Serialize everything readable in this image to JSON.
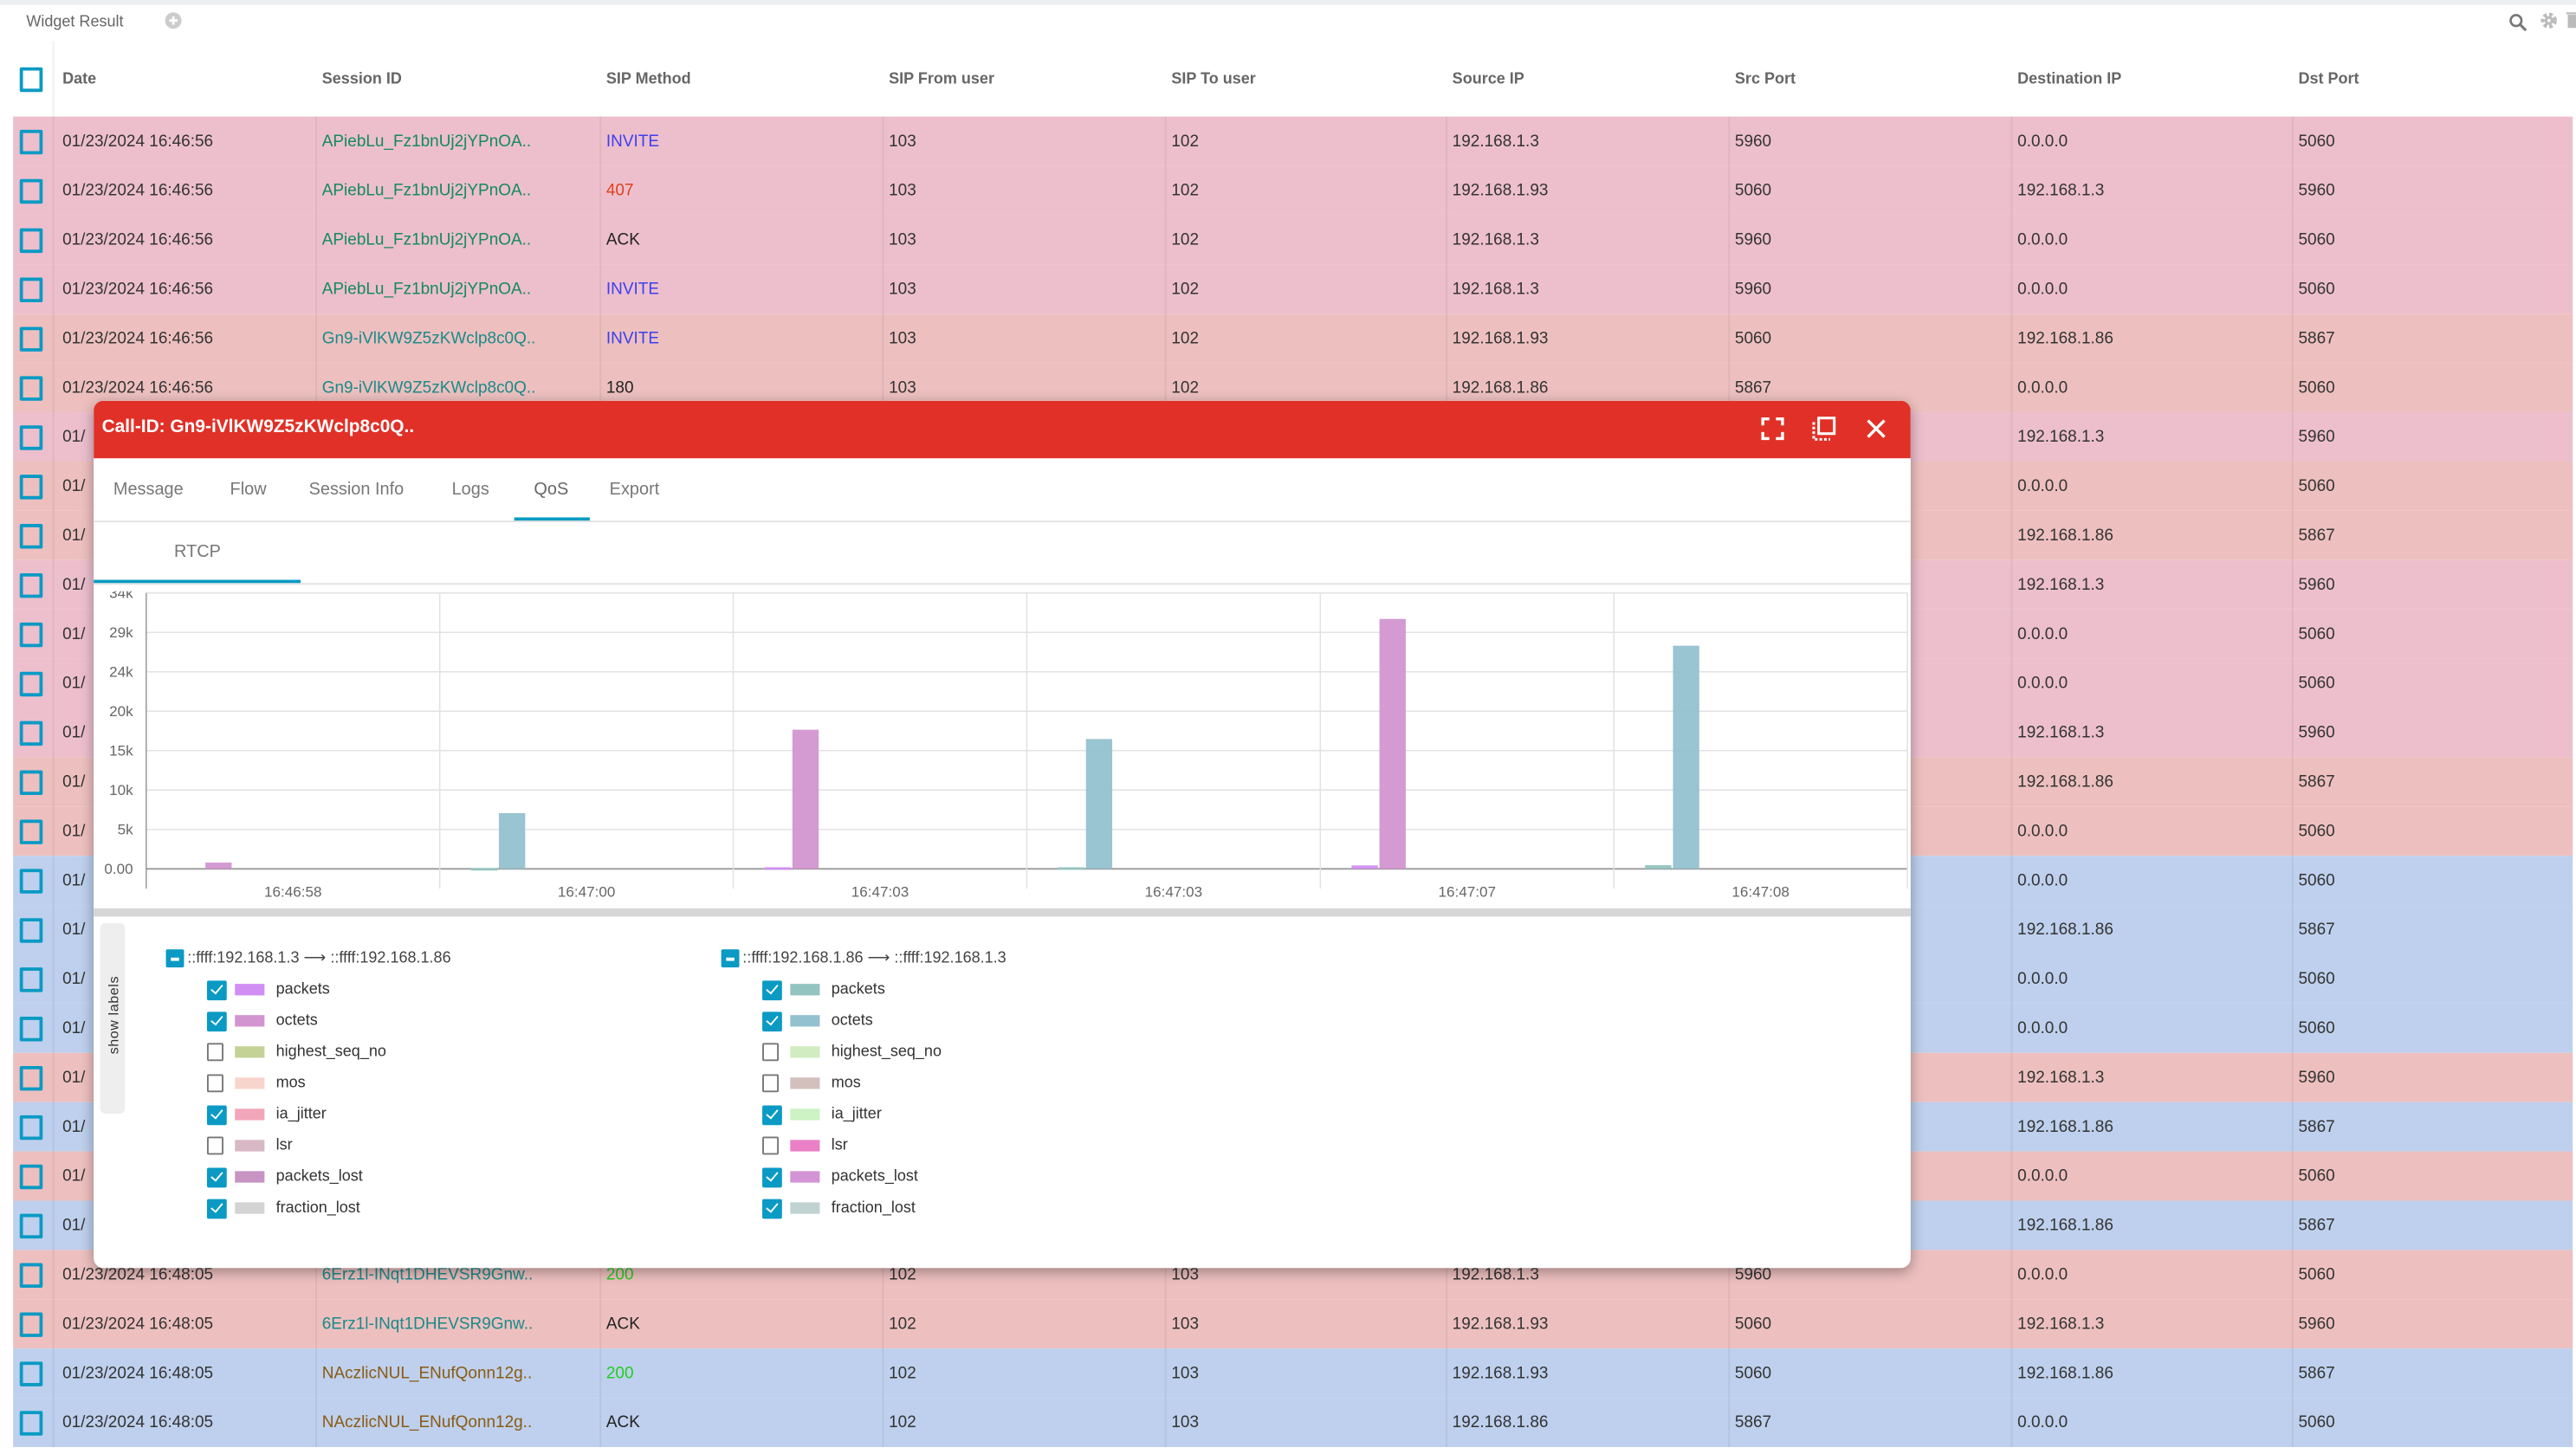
{
  "widget": {
    "title": "Widget Result"
  },
  "colors": {
    "accent": "#0a9ac4",
    "modal_header": "#e13027",
    "row_pink": "#edbfcd",
    "row_salmon": "#edc0bf",
    "row_blue": "#bed0ed"
  },
  "table": {
    "columns": [
      "Date",
      "Session ID",
      "SIP Method",
      "SIP From user",
      "SIP To user",
      "Source IP",
      "Src Port",
      "Destination IP",
      "Dst Port"
    ],
    "rows": [
      {
        "bg": "pink",
        "date": "01/23/2024 16:46:56",
        "session": "APiebLu_Fz1bnUj2jYPnOA..",
        "session_color": "#138a5e",
        "method": "INVITE",
        "method_color": "#3b3ff0",
        "from": "103",
        "to": "102",
        "src_ip": "192.168.1.3",
        "src_port": "5960",
        "dst_ip": "0.0.0.0",
        "dst_port": "5060"
      },
      {
        "bg": "pink",
        "date": "01/23/2024 16:46:56",
        "session": "APiebLu_Fz1bnUj2jYPnOA..",
        "session_color": "#138a5e",
        "method": "407",
        "method_color": "#e0401a",
        "from": "103",
        "to": "102",
        "src_ip": "192.168.1.93",
        "src_port": "5060",
        "dst_ip": "192.168.1.3",
        "dst_port": "5960"
      },
      {
        "bg": "pink",
        "date": "01/23/2024 16:46:56",
        "session": "APiebLu_Fz1bnUj2jYPnOA..",
        "session_color": "#138a5e",
        "method": "ACK",
        "method_color": "#222",
        "from": "103",
        "to": "102",
        "src_ip": "192.168.1.3",
        "src_port": "5960",
        "dst_ip": "0.0.0.0",
        "dst_port": "5060"
      },
      {
        "bg": "pink",
        "date": "01/23/2024 16:46:56",
        "session": "APiebLu_Fz1bnUj2jYPnOA..",
        "session_color": "#138a5e",
        "method": "INVITE",
        "method_color": "#3b3ff0",
        "from": "103",
        "to": "102",
        "src_ip": "192.168.1.3",
        "src_port": "5960",
        "dst_ip": "0.0.0.0",
        "dst_port": "5060"
      },
      {
        "bg": "salmon",
        "date": "01/23/2024 16:46:56",
        "session": "Gn9-iVlKW9Z5zKWclp8c0Q..",
        "session_color": "#1a8a8a",
        "method": "INVITE",
        "method_color": "#3b3ff0",
        "from": "103",
        "to": "102",
        "src_ip": "192.168.1.93",
        "src_port": "5060",
        "dst_ip": "192.168.1.86",
        "dst_port": "5867"
      },
      {
        "bg": "salmon",
        "date": "01/23/2024 16:46:56",
        "session": "Gn9-iVlKW9Z5zKWclp8c0Q..",
        "session_color": "#1a8a8a",
        "method": "180",
        "method_color": "#222",
        "from": "103",
        "to": "102",
        "src_ip": "192.168.1.86",
        "src_port": "5867",
        "dst_ip": "0.0.0.0",
        "dst_port": "5060"
      },
      {
        "bg": "pink",
        "date": "01/",
        "dst_ip": "192.168.1.3",
        "dst_port": "5960"
      },
      {
        "bg": "salmon",
        "date": "01/",
        "dst_ip": "0.0.0.0",
        "dst_port": "5060"
      },
      {
        "bg": "salmon",
        "date": "01/",
        "dst_ip": "192.168.1.86",
        "dst_port": "5867"
      },
      {
        "bg": "pink",
        "date": "01/",
        "dst_ip": "192.168.1.3",
        "dst_port": "5960"
      },
      {
        "bg": "pink",
        "date": "01/",
        "dst_ip": "0.0.0.0",
        "dst_port": "5060"
      },
      {
        "bg": "pink",
        "date": "01/",
        "dst_ip": "0.0.0.0",
        "dst_port": "5060"
      },
      {
        "bg": "pink",
        "date": "01/",
        "dst_ip": "192.168.1.3",
        "dst_port": "5960"
      },
      {
        "bg": "salmon",
        "date": "01/",
        "dst_ip": "192.168.1.86",
        "dst_port": "5867"
      },
      {
        "bg": "salmon",
        "date": "01/",
        "dst_ip": "0.0.0.0",
        "dst_port": "5060"
      },
      {
        "bg": "blue",
        "date": "01/",
        "dst_ip": "0.0.0.0",
        "dst_port": "5060"
      },
      {
        "bg": "blue",
        "date": "01/",
        "dst_ip": "192.168.1.86",
        "dst_port": "5867"
      },
      {
        "bg": "blue",
        "date": "01/",
        "dst_ip": "0.0.0.0",
        "dst_port": "5060"
      },
      {
        "bg": "blue",
        "date": "01/",
        "dst_ip": "0.0.0.0",
        "dst_port": "5060"
      },
      {
        "bg": "salmon",
        "date": "01/",
        "dst_ip": "192.168.1.3",
        "dst_port": "5960"
      },
      {
        "bg": "blue",
        "date": "01/",
        "dst_ip": "192.168.1.86",
        "dst_port": "5867"
      },
      {
        "bg": "salmon",
        "date": "01/",
        "dst_ip": "0.0.0.0",
        "dst_port": "5060"
      },
      {
        "bg": "blue",
        "date": "01/",
        "dst_ip": "192.168.1.86",
        "dst_port": "5867"
      },
      {
        "bg": "salmon",
        "date": "01/23/2024 16:48:05",
        "session": "6Erz1l-INqt1DHEVSR9Gnw..",
        "session_color": "#1a8a8a",
        "method": "200",
        "method_color": "#22cc22",
        "from": "102",
        "to": "103",
        "src_ip": "192.168.1.3",
        "src_port": "5960",
        "dst_ip": "0.0.0.0",
        "dst_port": "5060"
      },
      {
        "bg": "salmon",
        "date": "01/23/2024 16:48:05",
        "session": "6Erz1l-INqt1DHEVSR9Gnw..",
        "session_color": "#1a8a8a",
        "method": "ACK",
        "method_color": "#222",
        "from": "102",
        "to": "103",
        "src_ip": "192.168.1.93",
        "src_port": "5060",
        "dst_ip": "192.168.1.3",
        "dst_port": "5960"
      },
      {
        "bg": "blue",
        "date": "01/23/2024 16:48:05",
        "session": "NAczlicNUL_ENufQonn12g..",
        "session_color": "#8a5a12",
        "method": "200",
        "method_color": "#22cc22",
        "from": "102",
        "to": "103",
        "src_ip": "192.168.1.93",
        "src_port": "5060",
        "dst_ip": "192.168.1.86",
        "dst_port": "5867"
      },
      {
        "bg": "blue",
        "date": "01/23/2024 16:48:05",
        "session": "NAczlicNUL_ENufQonn12g..",
        "session_color": "#8a5a12",
        "method": "ACK",
        "method_color": "#222",
        "from": "102",
        "to": "103",
        "src_ip": "192.168.1.86",
        "src_port": "5867",
        "dst_ip": "0.0.0.0",
        "dst_port": "5060"
      }
    ]
  },
  "modal": {
    "title": "Call-ID: Gn9-iVlKW9Z5zKWclp8c0Q..",
    "tabs": [
      "Message",
      "Flow",
      "Session Info",
      "Logs",
      "QoS",
      "Export"
    ],
    "active_tab": "QoS",
    "subtab": "RTCP",
    "show_labels": "show labels"
  },
  "chart_data": {
    "type": "bar",
    "categories": [
      "16:46:58",
      "16:47:00",
      "16:47:03",
      "16:47:03",
      "16:47:07",
      "16:47:08"
    ],
    "y_ticks": [
      "0.00",
      "5k",
      "10k",
      "15k",
      "20k",
      "24k",
      "29k",
      "34k"
    ],
    "ylim": [
      0,
      34000
    ],
    "grid": true,
    "series": [
      {
        "name": "packets (::ffff:192.168.1.3 → ::ffff:192.168.1.86)",
        "slot": "small",
        "color": "#d18ef2",
        "values": [
          0,
          0,
          200,
          0,
          430,
          0
        ]
      },
      {
        "name": "octets (::ffff:192.168.1.3 → ::ffff:192.168.1.86)",
        "slot": "large",
        "color": "#d295d0",
        "values": [
          780,
          0,
          17150,
          0,
          30800,
          0
        ]
      },
      {
        "name": "packets (::ffff:192.168.1.86 → ::ffff:192.168.1.3)",
        "slot": "small",
        "color": "#94c4c0",
        "values": [
          0,
          100,
          0,
          200,
          0,
          460
        ]
      },
      {
        "name": "octets (::ffff:192.168.1.86 → ::ffff:192.168.1.3)",
        "slot": "large",
        "color": "#93c1cf",
        "values": [
          0,
          6870,
          0,
          16000,
          0,
          27500
        ]
      }
    ]
  },
  "legend": [
    {
      "title": "::ffff:192.168.1.3 ⟶ ::ffff:192.168.1.86",
      "items": [
        {
          "label": "packets",
          "checked": true,
          "color": "#d18ef2"
        },
        {
          "label": "octets",
          "checked": true,
          "color": "#d295d0"
        },
        {
          "label": "highest_seq_no",
          "checked": false,
          "color": "#c5d296"
        },
        {
          "label": "mos",
          "checked": false,
          "color": "#f8d5cc"
        },
        {
          "label": "ia_jitter",
          "checked": true,
          "color": "#f2a6ba"
        },
        {
          "label": "lsr",
          "checked": false,
          "color": "#d7b8c4"
        },
        {
          "label": "packets_lost",
          "checked": true,
          "color": "#c794c4"
        },
        {
          "label": "fraction_lost",
          "checked": true,
          "color": "#d4d4d4"
        }
      ]
    },
    {
      "title": "::ffff:192.168.1.86 ⟶ ::ffff:192.168.1.3",
      "items": [
        {
          "label": "packets",
          "checked": true,
          "color": "#94c4c0"
        },
        {
          "label": "octets",
          "checked": true,
          "color": "#93c1cf"
        },
        {
          "label": "highest_seq_no",
          "checked": false,
          "color": "#d1ecc0"
        },
        {
          "label": "mos",
          "checked": false,
          "color": "#d3c0bd"
        },
        {
          "label": "ia_jitter",
          "checked": true,
          "color": "#cdf2c4"
        },
        {
          "label": "lsr",
          "checked": false,
          "color": "#ea80c6"
        },
        {
          "label": "packets_lost",
          "checked": true,
          "color": "#d394d5"
        },
        {
          "label": "fraction_lost",
          "checked": true,
          "color": "#c0d3d2"
        }
      ]
    }
  ]
}
